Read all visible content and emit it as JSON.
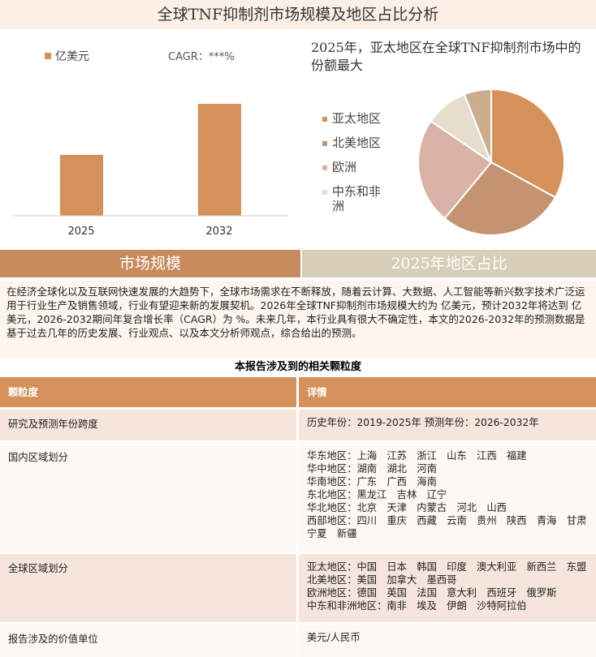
{
  "header": {
    "title": "全球TNF抑制剂市场规模及地区占比分析"
  },
  "chart_data": [
    {
      "type": "bar",
      "categories": [
        "2025",
        "2032"
      ],
      "series": [
        {
          "name": "亿美元",
          "color": "#d4915a",
          "values": [
            75,
            138
          ]
        }
      ],
      "ylim": [
        0,
        150
      ],
      "annotation": "CAGR：***%"
    },
    {
      "type": "pie",
      "title": "2025年，亚太地区在全球TNF抑制剂市场中的份额最大",
      "categories": [
        "亚太地区",
        "北美地区",
        "欧洲",
        "中东和非洲",
        null
      ],
      "values": [
        33,
        28,
        23.5,
        9.5,
        6
      ],
      "colors": [
        "#d4915a",
        "#c49472",
        "#d8b3a5",
        "#e7ddcf",
        "#c9ad8e"
      ]
    }
  ],
  "tabs": [
    "市场规模",
    "2025年地区占比"
  ],
  "paragraph": "在经济全球化以及互联网快速发展的大趋势下，全球市场需求在不断释放，随着云计算、大数据、人工智能等新兴数字技术广泛运用于行业生产及销售领域，行业有望迎来新的发展契机。2026年全球TNF抑制剂市场规模大约为 亿美元，预计2032年将达到 亿美元，2026-2032期间年复合增长率（CAGR）为 %。未来几年，本行业具有很大不确定性，本文的2026-2032年的预测数据是基于过去几年的历史发展、行业观点、以及本文分析师观点，综合给出的预测。",
  "table": {
    "title": "本报告涉及到的相关颗粒度",
    "header": [
      "颗粒度",
      "详情"
    ],
    "rows": [
      [
        "研究及预测年份跨度",
        [
          "历史年份：2019-2025年 预测年份：2026-2032年"
        ]
      ],
      [
        "国内区域划分",
        [
          "华东地区：上海　江苏　浙江　山东　江西　福建",
          "华中地区：湖南　湖北　河南",
          "华南地区：广东　广西　海南",
          "东北地区：黑龙江　吉林　辽宁",
          "华北地区：北京　天津　内蒙古　河北　山西",
          "西部地区：四川　重庆　西藏　云南　贵州　陕西　青海　甘肃　宁夏　新疆"
        ]
      ],
      [
        "全球区域划分",
        [
          "亚太地区：中国　日本　韩国　印度　澳大利亚　新西兰　东盟",
          "北美地区：美国　加拿大　墨西哥",
          "欧洲地区：德国　英国　法国　意大利　西班牙　俄罗斯",
          "中东和非洲地区：南非　埃及　伊朗　沙特阿拉伯"
        ]
      ],
      [
        "报告涉及的价值单位",
        [
          "美元/人民币"
        ]
      ]
    ]
  }
}
